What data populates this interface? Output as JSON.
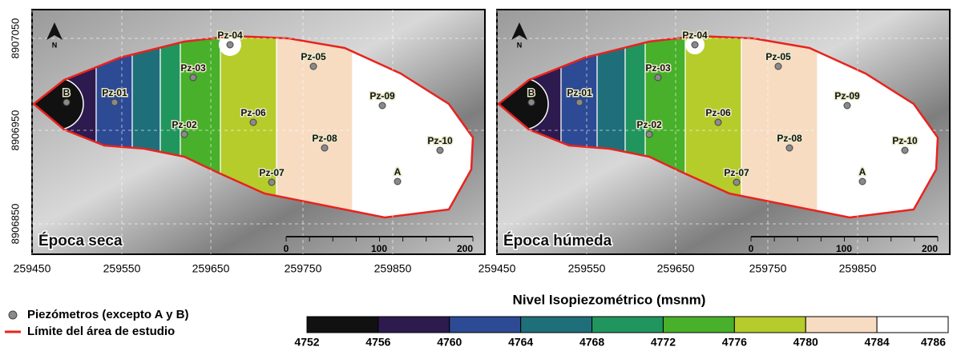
{
  "panels": [
    {
      "label": "Época seca",
      "wells": [
        "B",
        "Pz-01",
        "Pz-02",
        "Pz-03",
        "Pz-04",
        "Pz-05",
        "Pz-06",
        "Pz-07",
        "Pz-08",
        "Pz-09",
        "Pz-10",
        "A"
      ]
    },
    {
      "label": "Época húmeda",
      "wells": [
        "B",
        "Pz-01",
        "Pz-02",
        "Pz-03",
        "Pz-04",
        "Pz-05",
        "Pz-06",
        "Pz-07",
        "Pz-08",
        "Pz-09",
        "Pz-10",
        "A"
      ]
    }
  ],
  "north": "N",
  "scale_bar": [
    "0",
    "100",
    "200"
  ],
  "x_axis_labels": [
    "259450",
    "259550",
    "259650",
    "259750",
    "259850"
  ],
  "y_axis_labels": [
    "8907050",
    "8906950",
    "8906850"
  ],
  "legend": [
    {
      "label": "Piezómetros (excepto A y B)"
    },
    {
      "label": "Límite del área de estudio"
    }
  ],
  "colorbar": {
    "title": "Nivel Isopiezométrico (msnm)",
    "ticks": [
      4752,
      4756,
      4760,
      4764,
      4768,
      4772,
      4776,
      4780,
      4784,
      4786
    ],
    "colors": [
      "#111111",
      "#2d1a4e",
      "#2d4a94",
      "#1e6f7a",
      "#21955e",
      "#48b02a",
      "#b5cc2a",
      "#f7dcc2",
      "#ffffff"
    ]
  }
}
